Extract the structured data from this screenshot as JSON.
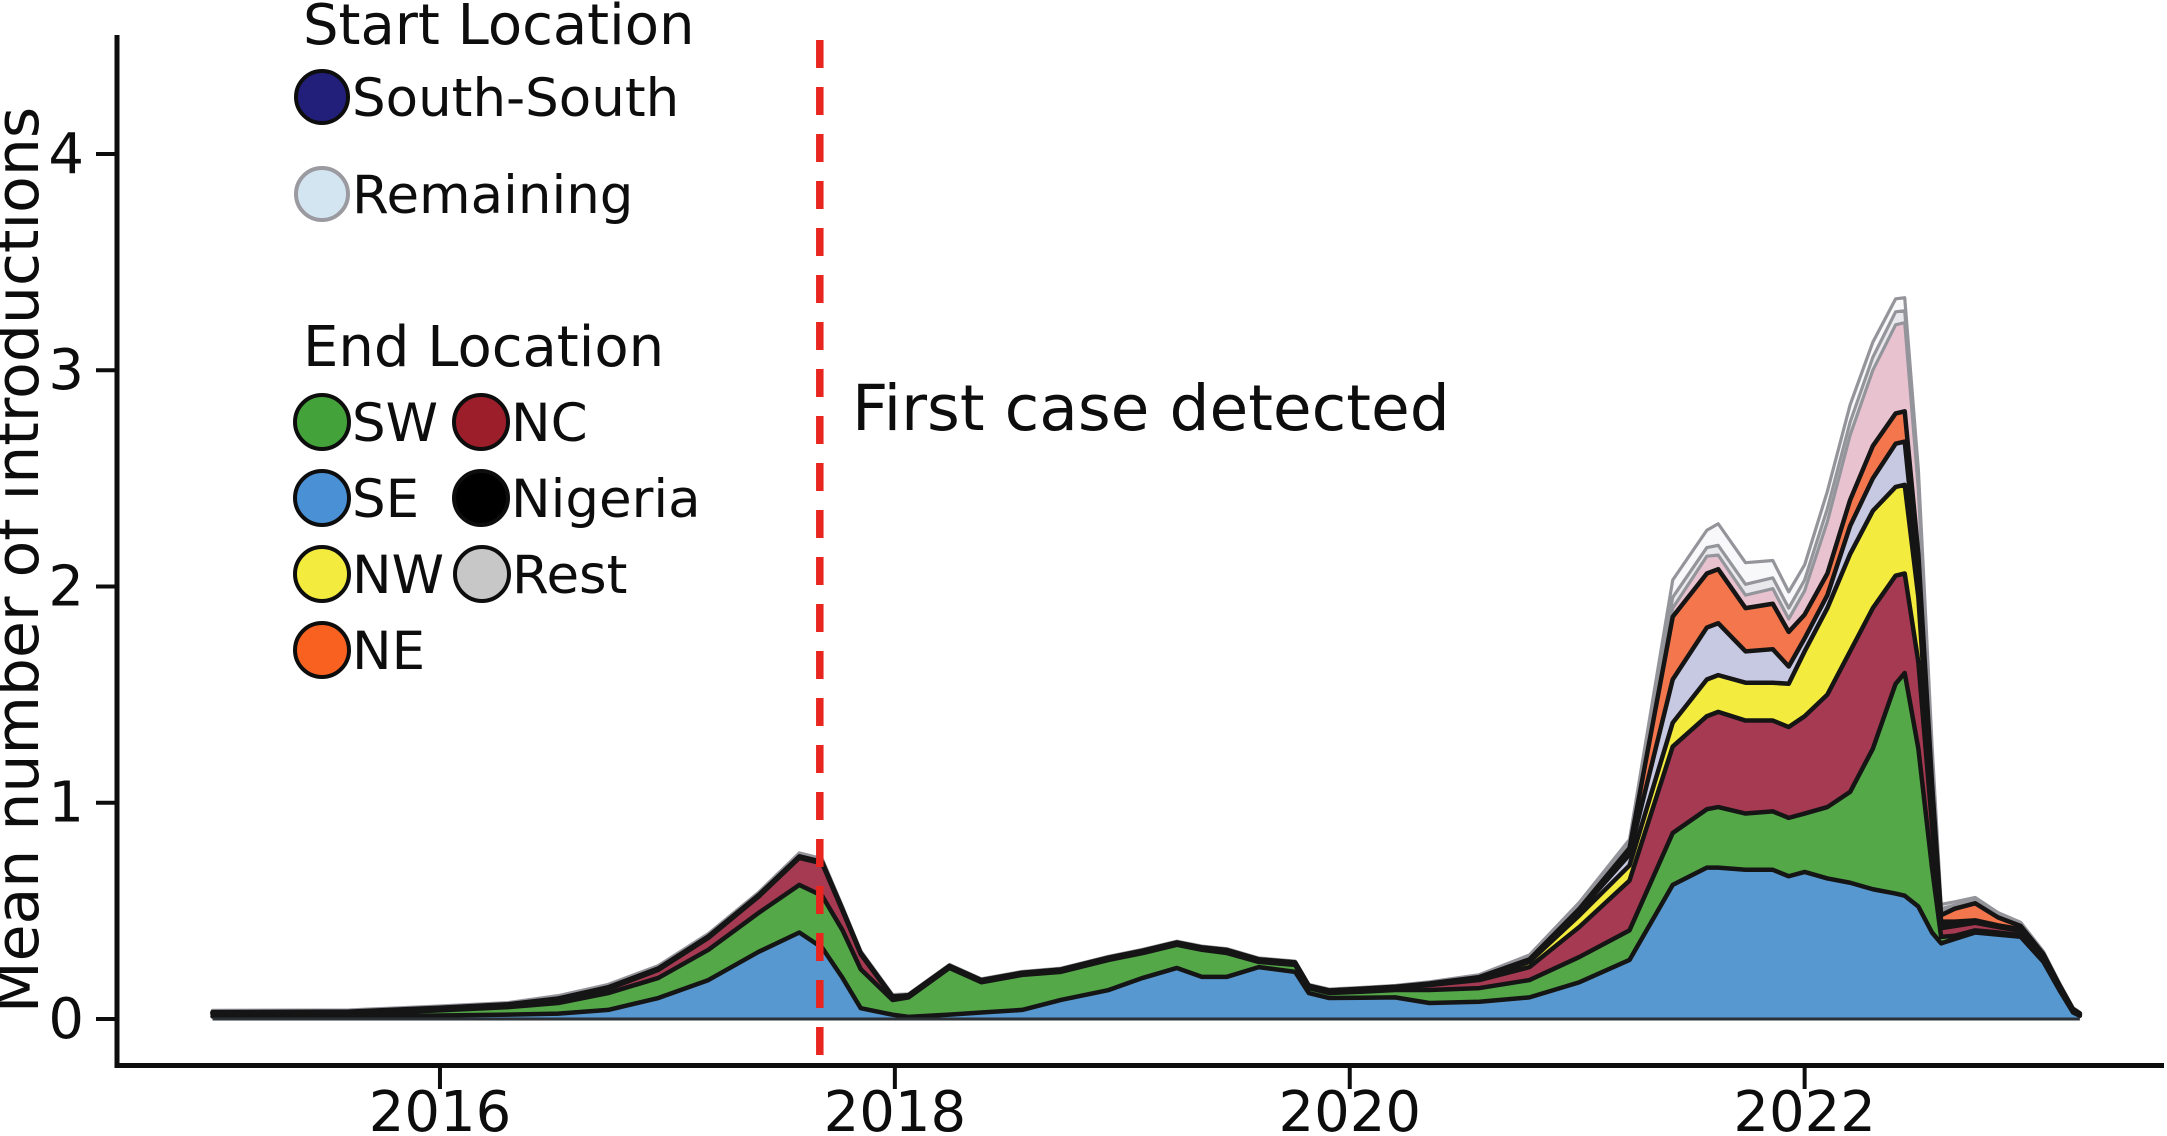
{
  "figure": {
    "y_axis": {
      "label": "Mean number of introductions",
      "tick_labels": [
        "0",
        "1",
        "2",
        "3",
        "4"
      ],
      "tick_values": [
        0,
        1,
        2,
        3,
        4
      ]
    },
    "x_axis": {
      "tick_labels": [
        "2016",
        "2018",
        "2020",
        "2022"
      ],
      "tick_values": [
        2016,
        2018,
        2020,
        2022
      ]
    },
    "annotation": {
      "text": "First case detected"
    },
    "legend": {
      "start_title": "Start Location",
      "start_items": [
        {
          "label": "South-South",
          "color": "#221f7b",
          "border": "#0d0d0d"
        },
        {
          "label": "Remaining",
          "color": "#d4e5f2",
          "border": "#9a9aa0"
        }
      ],
      "end_title": "End Location",
      "end_items": [
        {
          "label": "SW",
          "color": "#44a23a",
          "border": "#0d0d0d"
        },
        {
          "label": "NC",
          "color": "#9d1e2b",
          "border": "#0d0d0d"
        },
        {
          "label": "SE",
          "color": "#4a90d5",
          "border": "#0d0d0d"
        },
        {
          "label": "Nigeria",
          "color": "#000000",
          "border": "#0d0d0d"
        },
        {
          "label": "NW",
          "color": "#f3eb3d",
          "border": "#0d0d0d"
        },
        {
          "label": "Rest",
          "color": "#c7c7c7",
          "border": "#0d0d0d"
        },
        {
          "label": "NE",
          "color": "#f8611f",
          "border": "#0d0d0d"
        }
      ]
    },
    "chart_data": {
      "type": "area",
      "subtype": "stacked_area",
      "title": "",
      "xlabel": "",
      "ylabel": "Mean number of introductions",
      "xlim": [
        2014.58,
        2023.58
      ],
      "ylim": [
        0,
        4.55
      ],
      "grid": false,
      "legend_position": "upper-left",
      "event_line": {
        "year": 2017.67,
        "label": "First case detected",
        "color": "#e8251f",
        "style": "dashed"
      },
      "stacking_note": "values are cumulative stack tops (running sums), bottom series first",
      "x": [
        2015.0,
        2015.6,
        2016.0,
        2016.3,
        2016.52,
        2016.74,
        2016.96,
        2017.18,
        2017.4,
        2017.58,
        2017.68,
        2017.77,
        2017.85,
        2017.99,
        2018.06,
        2018.24,
        2018.38,
        2018.56,
        2018.73,
        2018.94,
        2019.09,
        2019.24,
        2019.35,
        2019.46,
        2019.6,
        2019.76,
        2019.82,
        2019.91,
        2020.05,
        2020.2,
        2020.35,
        2020.57,
        2020.79,
        2021.01,
        2021.23,
        2021.42,
        2021.57,
        2021.62,
        2021.74,
        2021.86,
        2021.93,
        2022.0,
        2022.1,
        2022.2,
        2022.3,
        2022.4,
        2022.44,
        2022.5,
        2022.56,
        2022.6,
        2022.66,
        2022.75,
        2022.85,
        2022.95,
        2023.05,
        2023.12,
        2023.18,
        2023.21
      ],
      "series": [
        {
          "name": "SE (blue)",
          "fill": "#5898d0",
          "edge": "#151515",
          "cum": [
            0.012,
            0.013,
            0.016,
            0.02,
            0.025,
            0.042,
            0.097,
            0.18,
            0.31,
            0.4,
            0.33,
            0.19,
            0.05,
            0.02,
            0.01,
            0.02,
            0.03,
            0.042,
            0.088,
            0.134,
            0.19,
            0.236,
            0.195,
            0.195,
            0.24,
            0.218,
            0.12,
            0.097,
            0.098,
            0.1,
            0.074,
            0.08,
            0.1,
            0.17,
            0.273,
            0.62,
            0.7,
            0.7,
            0.69,
            0.69,
            0.66,
            0.68,
            0.65,
            0.63,
            0.6,
            0.58,
            0.57,
            0.52,
            0.4,
            0.35,
            0.37,
            0.4,
            0.39,
            0.38,
            0.264,
            0.134,
            0.03,
            0.015
          ]
        },
        {
          "name": "SW (green)",
          "fill": "#54a848",
          "edge": "#151515",
          "cum": [
            0.022,
            0.024,
            0.04,
            0.055,
            0.074,
            0.12,
            0.19,
            0.32,
            0.49,
            0.62,
            0.57,
            0.41,
            0.23,
            0.088,
            0.1,
            0.236,
            0.17,
            0.204,
            0.218,
            0.273,
            0.305,
            0.343,
            0.32,
            0.305,
            0.264,
            0.25,
            0.143,
            0.12,
            0.126,
            0.134,
            0.134,
            0.143,
            0.18,
            0.287,
            0.41,
            0.86,
            0.97,
            0.98,
            0.95,
            0.96,
            0.93,
            0.95,
            0.98,
            1.05,
            1.25,
            1.55,
            1.6,
            1.25,
            0.7,
            0.38,
            0.385,
            0.41,
            0.4,
            0.388,
            0.27,
            0.14,
            0.034,
            0.018
          ]
        },
        {
          "name": "NC (dark red)",
          "fill": "#a63a53",
          "edge": "#151515",
          "cum": [
            0.026,
            0.028,
            0.046,
            0.062,
            0.088,
            0.14,
            0.227,
            0.375,
            0.565,
            0.745,
            0.72,
            0.5,
            0.3,
            0.1,
            0.106,
            0.242,
            0.176,
            0.21,
            0.225,
            0.28,
            0.312,
            0.35,
            0.327,
            0.315,
            0.272,
            0.258,
            0.15,
            0.128,
            0.136,
            0.145,
            0.157,
            0.18,
            0.24,
            0.426,
            0.64,
            1.26,
            1.4,
            1.42,
            1.38,
            1.38,
            1.35,
            1.4,
            1.5,
            1.7,
            1.9,
            2.05,
            2.06,
            1.65,
            0.9,
            0.42,
            0.43,
            0.445,
            0.425,
            0.408,
            0.285,
            0.15,
            0.04,
            0.022
          ]
        },
        {
          "name": "NW (yellow)",
          "fill": "#f3eb3d",
          "edge": "#151515",
          "cum": [
            0.028,
            0.03,
            0.048,
            0.064,
            0.091,
            0.143,
            0.23,
            0.378,
            0.568,
            0.748,
            0.723,
            0.503,
            0.302,
            0.102,
            0.108,
            0.244,
            0.178,
            0.212,
            0.227,
            0.282,
            0.314,
            0.352,
            0.329,
            0.317,
            0.274,
            0.26,
            0.152,
            0.13,
            0.138,
            0.147,
            0.16,
            0.186,
            0.264,
            0.48,
            0.71,
            1.37,
            1.57,
            1.59,
            1.555,
            1.555,
            1.55,
            1.7,
            1.9,
            2.15,
            2.35,
            2.46,
            2.47,
            1.95,
            1.0,
            0.44,
            0.445,
            0.452,
            0.43,
            0.412,
            0.288,
            0.152,
            0.042,
            0.023
          ]
        },
        {
          "name": "pale lavender",
          "fill": "#c7c9e3",
          "edge": "#151515",
          "cum": [
            0.03,
            0.032,
            0.05,
            0.066,
            0.093,
            0.145,
            0.232,
            0.38,
            0.57,
            0.75,
            0.725,
            0.505,
            0.304,
            0.103,
            0.109,
            0.245,
            0.179,
            0.213,
            0.228,
            0.283,
            0.315,
            0.353,
            0.33,
            0.318,
            0.275,
            0.261,
            0.153,
            0.131,
            0.139,
            0.148,
            0.162,
            0.19,
            0.27,
            0.5,
            0.76,
            1.57,
            1.81,
            1.83,
            1.7,
            1.71,
            1.63,
            1.76,
            1.96,
            2.28,
            2.5,
            2.66,
            2.67,
            2.05,
            1.04,
            0.45,
            0.45,
            0.456,
            0.433,
            0.415,
            0.29,
            0.154,
            0.043,
            0.024
          ]
        },
        {
          "name": "NE (orange)",
          "fill": "#f3764d",
          "edge": "#151515",
          "cum": [
            0.032,
            0.034,
            0.052,
            0.068,
            0.095,
            0.147,
            0.234,
            0.382,
            0.572,
            0.752,
            0.727,
            0.507,
            0.306,
            0.104,
            0.11,
            0.246,
            0.18,
            0.214,
            0.229,
            0.284,
            0.316,
            0.354,
            0.331,
            0.319,
            0.276,
            0.262,
            0.154,
            0.132,
            0.14,
            0.149,
            0.164,
            0.194,
            0.276,
            0.51,
            0.79,
            1.86,
            2.06,
            2.08,
            1.9,
            1.92,
            1.79,
            1.87,
            2.06,
            2.4,
            2.65,
            2.8,
            2.81,
            2.15,
            1.09,
            0.48,
            0.51,
            0.535,
            0.47,
            0.43,
            0.3,
            0.158,
            0.046,
            0.026
          ]
        },
        {
          "name": "pale pink",
          "fill": "#e9c2d0",
          "edge": "#94949b",
          "cum": [
            0.033,
            0.035,
            0.053,
            0.069,
            0.097,
            0.149,
            0.236,
            0.384,
            0.574,
            0.754,
            0.729,
            0.509,
            0.308,
            0.105,
            0.111,
            0.247,
            0.181,
            0.215,
            0.23,
            0.285,
            0.317,
            0.355,
            0.332,
            0.32,
            0.277,
            0.263,
            0.155,
            0.133,
            0.141,
            0.15,
            0.166,
            0.197,
            0.28,
            0.515,
            0.8,
            1.9,
            2.14,
            2.145,
            1.96,
            1.99,
            1.85,
            1.98,
            2.3,
            2.7,
            3.0,
            3.21,
            3.22,
            2.45,
            1.2,
            0.5,
            0.52,
            0.545,
            0.478,
            0.436,
            0.304,
            0.161,
            0.048,
            0.028
          ]
        },
        {
          "name": "pale gray",
          "fill": "#e9e9ed",
          "edge": "#94949b",
          "cum": [
            0.035,
            0.037,
            0.055,
            0.071,
            0.099,
            0.151,
            0.238,
            0.386,
            0.576,
            0.756,
            0.731,
            0.511,
            0.31,
            0.107,
            0.113,
            0.249,
            0.183,
            0.217,
            0.232,
            0.287,
            0.319,
            0.357,
            0.334,
            0.322,
            0.279,
            0.265,
            0.157,
            0.135,
            0.143,
            0.152,
            0.168,
            0.2,
            0.285,
            0.52,
            0.81,
            1.95,
            2.18,
            2.19,
            2.01,
            2.04,
            1.9,
            2.03,
            2.36,
            2.76,
            3.06,
            3.27,
            3.275,
            2.49,
            1.23,
            0.51,
            0.527,
            0.551,
            0.483,
            0.441,
            0.308,
            0.164,
            0.05,
            0.029
          ]
        },
        {
          "name": "white cap",
          "fill": "#f8f8fa",
          "edge": "#94949b",
          "cum": [
            0.04,
            0.042,
            0.06,
            0.076,
            0.108,
            0.16,
            0.247,
            0.395,
            0.585,
            0.768,
            0.742,
            0.52,
            0.315,
            0.113,
            0.116,
            0.252,
            0.186,
            0.22,
            0.235,
            0.29,
            0.322,
            0.36,
            0.337,
            0.325,
            0.282,
            0.268,
            0.16,
            0.138,
            0.146,
            0.155,
            0.172,
            0.205,
            0.296,
            0.54,
            0.83,
            2.03,
            2.26,
            2.29,
            2.11,
            2.12,
            1.975,
            2.1,
            2.44,
            2.84,
            3.13,
            3.33,
            3.335,
            2.54,
            1.27,
            0.53,
            0.542,
            0.562,
            0.492,
            0.447,
            0.312,
            0.168,
            0.053,
            0.031
          ]
        }
      ]
    }
  }
}
